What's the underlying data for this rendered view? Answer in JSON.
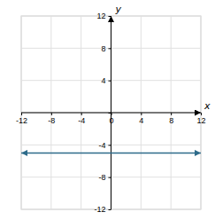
{
  "chart_data": {
    "type": "line",
    "x": [
      -12,
      12
    ],
    "values": [
      -5,
      -5
    ],
    "color": "#2E6B8A",
    "marker": "arrow",
    "xlabel": "x",
    "ylabel": "y",
    "xlim": [
      -12,
      12
    ],
    "ylim": [
      -12,
      12
    ],
    "xticks": [
      -12,
      -8,
      -4,
      0,
      4,
      8,
      12
    ],
    "yticks": [
      -12,
      -8,
      -4,
      {
        "value": 0,
        "label": null
      },
      4,
      8,
      12
    ],
    "grid": true
  }
}
